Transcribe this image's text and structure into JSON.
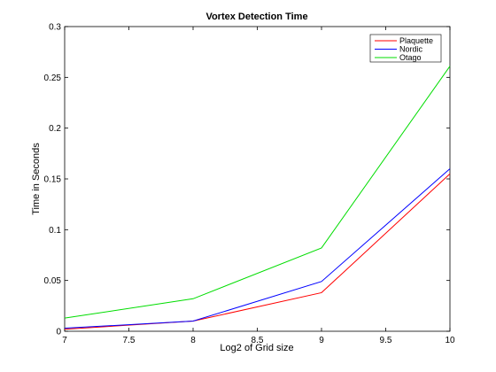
{
  "chart_data": {
    "type": "line",
    "title": "Vortex Detection Time",
    "xlabel": "Log2 of Grid size",
    "ylabel": "Time in Seconds",
    "xlim": [
      7,
      10
    ],
    "ylim": [
      0,
      0.3
    ],
    "xticks": [
      7,
      7.5,
      8,
      8.5,
      9,
      9.5,
      10
    ],
    "xtick_labels": [
      "7",
      "7.5",
      "8",
      "8.5",
      "9",
      "9.5",
      "10"
    ],
    "yticks": [
      0,
      0.05,
      0.1,
      0.15,
      0.2,
      0.25,
      0.3
    ],
    "ytick_labels": [
      "0",
      "0.05",
      "0.1",
      "0.15",
      "0.2",
      "0.25",
      "0.3"
    ],
    "grid": false,
    "legend_position": "top-right",
    "x": [
      7,
      8,
      9,
      10
    ],
    "series": [
      {
        "name": "Plaquette",
        "color": "#ff0000",
        "values": [
          0.002,
          0.01,
          0.038,
          0.155
        ]
      },
      {
        "name": "Nordic",
        "color": "#0000ff",
        "values": [
          0.003,
          0.01,
          0.049,
          0.16
        ]
      },
      {
        "name": "Otago",
        "color": "#00dd00",
        "values": [
          0.013,
          0.032,
          0.082,
          0.261
        ]
      }
    ]
  }
}
